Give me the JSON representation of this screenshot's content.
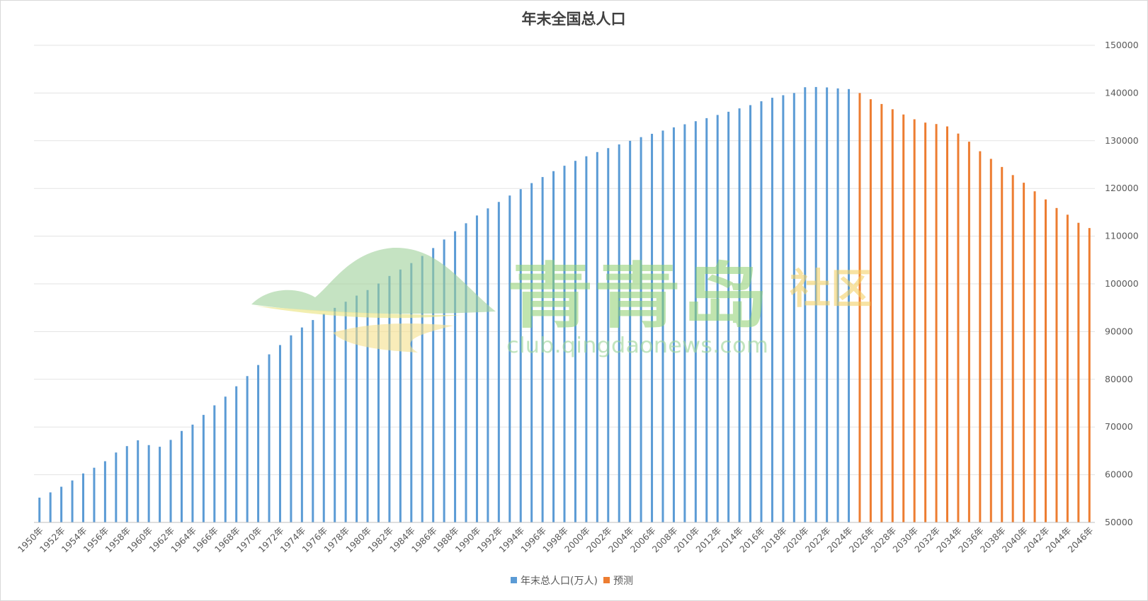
{
  "chart_data": {
    "type": "bar",
    "title": "年末全国总人口",
    "y_axis_position": "right",
    "ylim": [
      50000,
      150000
    ],
    "yticks": [
      50000,
      60000,
      70000,
      80000,
      90000,
      100000,
      110000,
      120000,
      130000,
      140000,
      150000
    ],
    "grid": true,
    "legend_position": "bottom",
    "series": [
      {
        "name": "年末总人口(万人)",
        "color": "#5B9BD5",
        "x": [
          1950,
          1951,
          1952,
          1953,
          1954,
          1955,
          1956,
          1957,
          1958,
          1959,
          1960,
          1961,
          1962,
          1963,
          1964,
          1965,
          1966,
          1967,
          1968,
          1969,
          1970,
          1971,
          1972,
          1973,
          1974,
          1975,
          1976,
          1977,
          1978,
          1979,
          1980,
          1981,
          1982,
          1983,
          1984,
          1985,
          1986,
          1987,
          1988,
          1989,
          1990,
          1991,
          1992,
          1993,
          1994,
          1995,
          1996,
          1997,
          1998,
          1999,
          2000,
          2001,
          2002,
          2003,
          2004,
          2005,
          2006,
          2007,
          2008,
          2009,
          2010,
          2011,
          2012,
          2013,
          2014,
          2015,
          2016,
          2017,
          2018,
          2019,
          2020,
          2021,
          2022,
          2023,
          2024
        ],
        "values": [
          55196,
          56300,
          57482,
          58796,
          60266,
          61465,
          62828,
          64653,
          65994,
          67207,
          66207,
          65859,
          67296,
          69172,
          70499,
          72538,
          74542,
          76368,
          78534,
          80671,
          82992,
          85229,
          87177,
          89211,
          90859,
          92420,
          93717,
          94974,
          96259,
          97542,
          98705,
          100072,
          101654,
          103008,
          104357,
          105851,
          107507,
          109300,
          111026,
          112704,
          114333,
          115823,
          117171,
          118517,
          119850,
          121121,
          122389,
          123626,
          124761,
          125786,
          126743,
          127627,
          128453,
          129227,
          129988,
          130756,
          131448,
          132129,
          132802,
          133450,
          134091,
          134735,
          135404,
          136072,
          136782,
          137462,
          138271,
          139008,
          139538,
          140005,
          141212,
          141260,
          141175,
          140967,
          140828
        ]
      },
      {
        "name": "预测",
        "color": "#ED7D31",
        "x": [
          2025,
          2026,
          2027,
          2028,
          2029,
          2030,
          2031,
          2032,
          2033,
          2034,
          2035,
          2036,
          2037,
          2038,
          2039,
          2040,
          2041,
          2042,
          2043,
          2044,
          2045,
          2046
        ],
        "values": [
          140000,
          138700,
          137700,
          136600,
          135500,
          134500,
          133800,
          133500,
          133000,
          131500,
          129800,
          127800,
          126200,
          124500,
          122800,
          121200,
          119400,
          117700,
          115900,
          114500,
          112800,
          111700
        ]
      }
    ],
    "x_tick_labels": [
      "1950年",
      "1952年",
      "1954年",
      "1956年",
      "1958年",
      "1960年",
      "1962年",
      "1964年",
      "1966年",
      "1968年",
      "1970年",
      "1972年",
      "1974年",
      "1976年",
      "1978年",
      "1980年",
      "1982年",
      "1984年",
      "1986年",
      "1988年",
      "1990年",
      "1992年",
      "1994年",
      "1996年",
      "1998年",
      "2000年",
      "2002年",
      "2004年",
      "2006年",
      "2008年",
      "2010年",
      "2012年",
      "2014年",
      "2016年",
      "2018年",
      "2020年",
      "2022年",
      "2024年",
      "2026年",
      "2028年",
      "2030年",
      "2032年",
      "2034年",
      "2036年",
      "2038年",
      "2040年",
      "2042年",
      "2044年",
      "2046年"
    ]
  },
  "watermark": {
    "text_main": "青青岛",
    "text_side": "社区",
    "url": "club.qingdaonews.com"
  }
}
